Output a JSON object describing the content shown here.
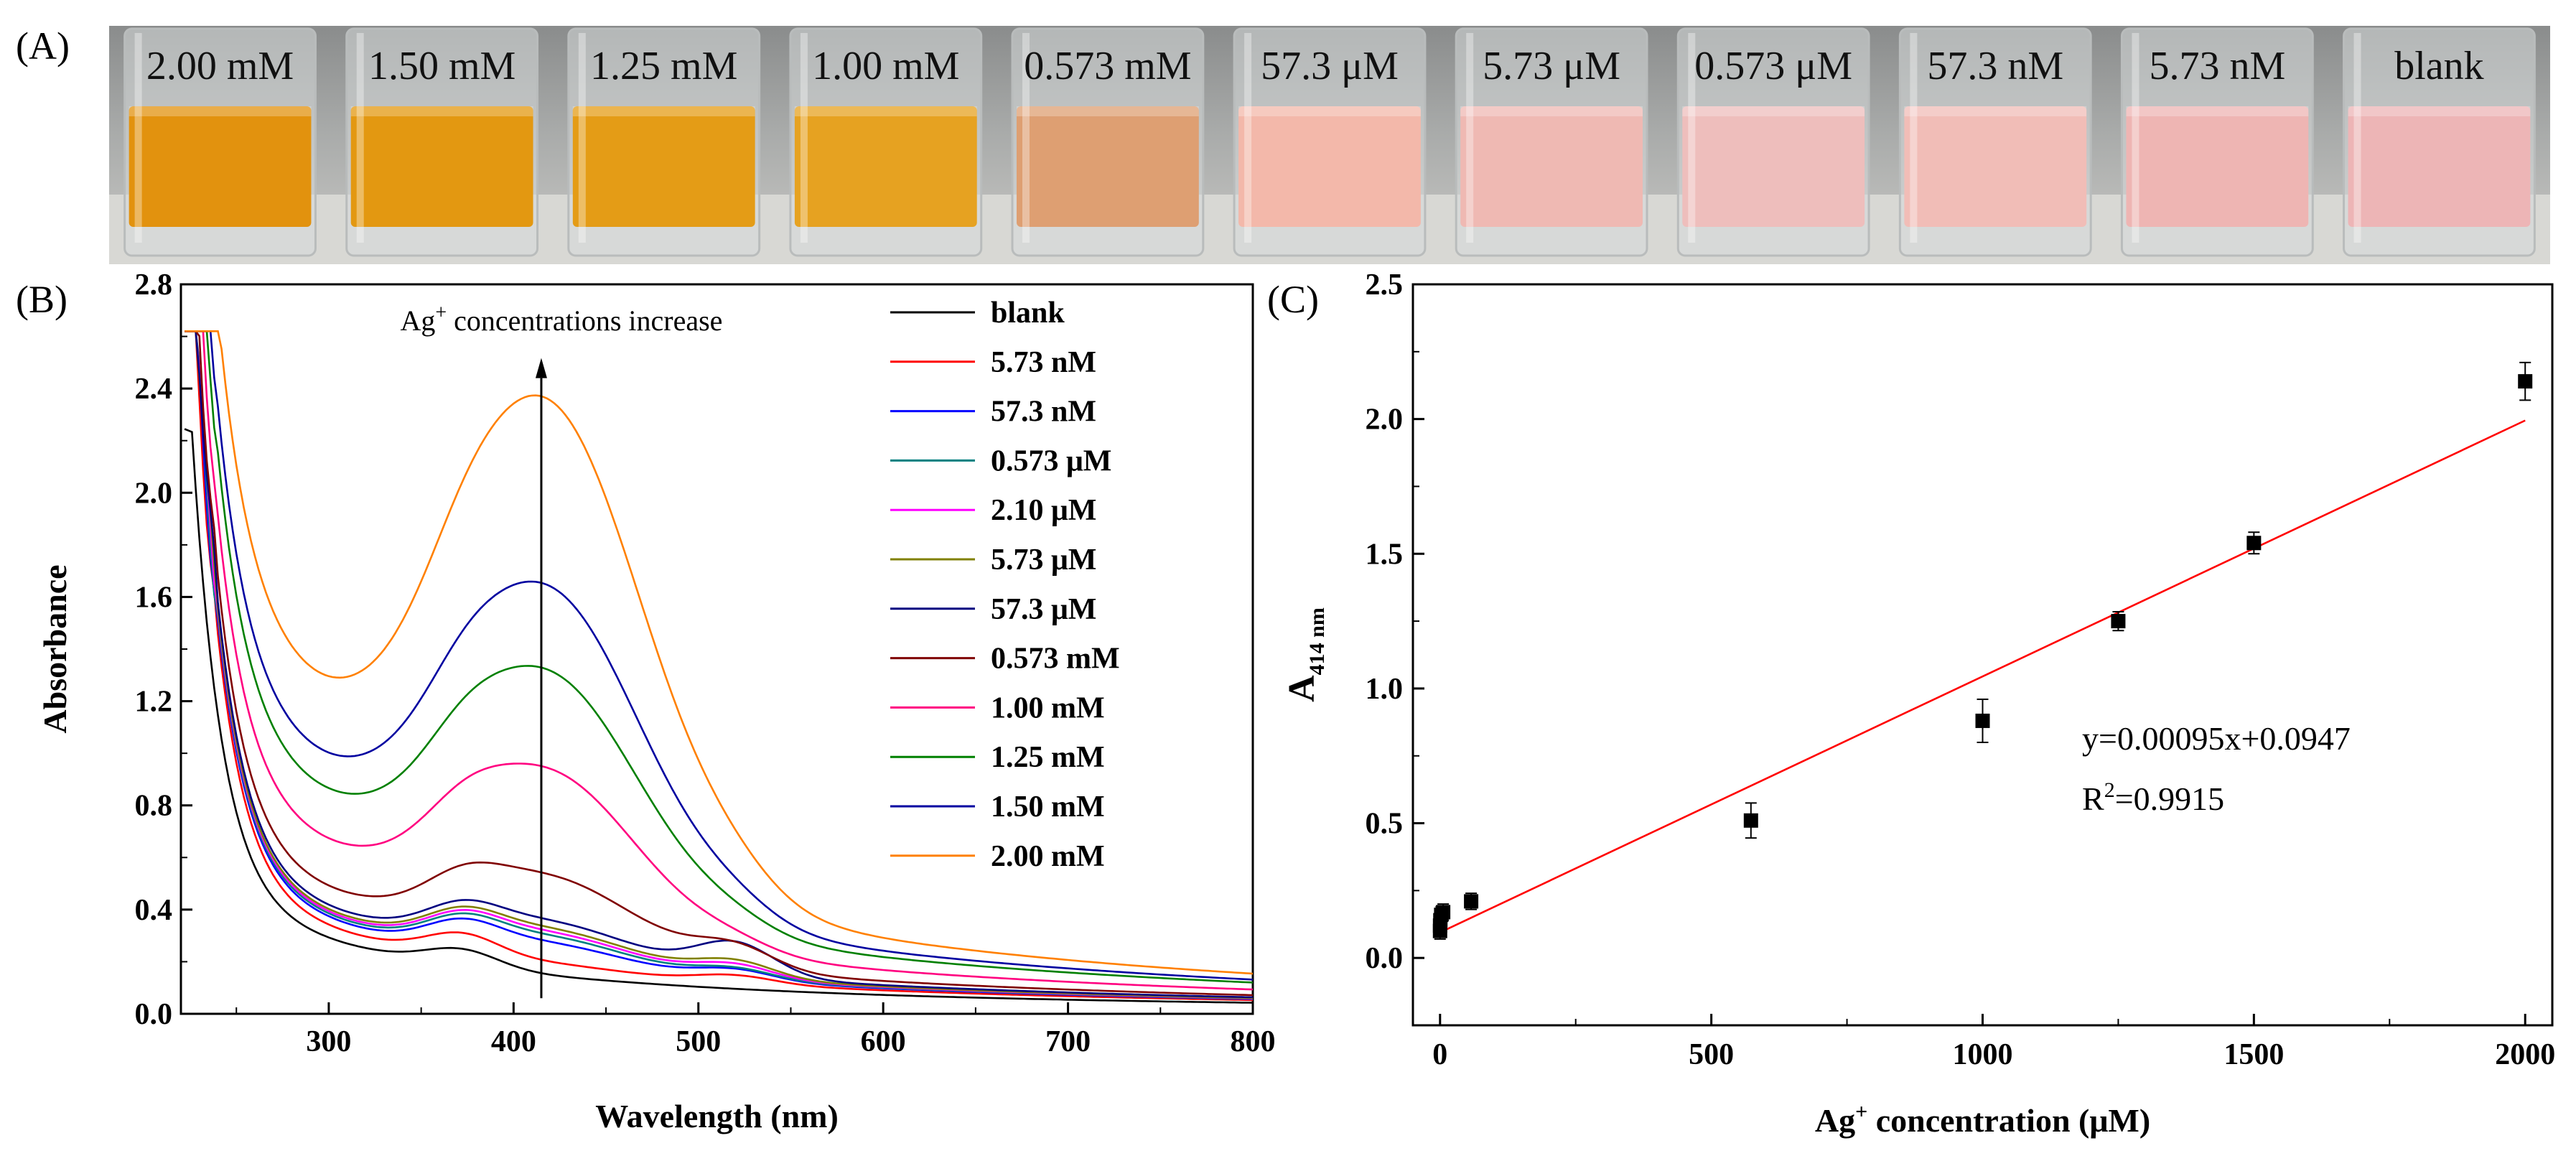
{
  "panels": {
    "a_label": "(A)",
    "b_label": "(B)",
    "c_label": "(C)"
  },
  "photo": {
    "vials": [
      {
        "label": "2.00 mM",
        "color": "#E2920E"
      },
      {
        "label": "1.50 mM",
        "color": "#E39811"
      },
      {
        "label": "1.25 mM",
        "color": "#E49C16"
      },
      {
        "label": "1.00 mM",
        "color": "#E6A221"
      },
      {
        "label": "0.573 mM",
        "color": "#DE9F72"
      },
      {
        "label": "57.3 μM",
        "color": "#F3B8AA"
      },
      {
        "label": "5.73 μM",
        "color": "#EFB9B3"
      },
      {
        "label": "0.573 μM",
        "color": "#EEBEBC"
      },
      {
        "label": "57.3 nM",
        "color": "#F1BDB7"
      },
      {
        "label": "5.73 nM",
        "color": "#EEB5B3"
      },
      {
        "label": "blank",
        "color": "#EDB5B6"
      }
    ]
  },
  "chart_data": [
    {
      "type": "line",
      "panel": "B",
      "title": "",
      "xlabel": "Wavelength (nm)",
      "ylabel": "Absorbance",
      "xlim": [
        220,
        800
      ],
      "ylim": [
        0,
        2.8
      ],
      "xticks": [
        "300",
        "400",
        "500",
        "600",
        "700",
        "800"
      ],
      "yticks": [
        "0.0",
        "0.4",
        "0.8",
        "1.2",
        "1.6",
        "2.0",
        "2.4",
        "2.8"
      ],
      "annotation": {
        "text_main": "Ag",
        "text_sup": "+",
        "text_rest": " concentrations increase",
        "x": 415
      },
      "legend_position": "top-right",
      "series": [
        {
          "name": "blank",
          "color": "#000000",
          "peak": 0.0,
          "mid": 0.11,
          "sat": 1.8,
          "p520": 0.0,
          "fw": 0.15
        },
        {
          "name": "5.73 nM",
          "color": "#FF0000",
          "peak": 0.02,
          "mid": 0.15,
          "sat": 2.42,
          "p520": 0.03,
          "fw": 0.2
        },
        {
          "name": "57.3 nM",
          "color": "#0000FF",
          "peak": 0.08,
          "mid": 0.165,
          "sat": 2.44,
          "p520": 0.04,
          "fw": 0.21
        },
        {
          "name": "0.573 μM",
          "color": "#008080",
          "peak": 0.1,
          "mid": 0.17,
          "sat": 2.45,
          "p520": 0.04,
          "fw": 0.21
        },
        {
          "name": "2.10 μM",
          "color": "#FF00FF",
          "peak": 0.11,
          "mid": 0.175,
          "sat": 2.46,
          "p520": 0.05,
          "fw": 0.22
        },
        {
          "name": "5.73  μM",
          "color": "#808000",
          "peak": 0.12,
          "mid": 0.18,
          "sat": 2.47,
          "p520": 0.06,
          "fw": 0.22
        },
        {
          "name": "57.3 μM",
          "color": "#000080",
          "peak": 0.14,
          "mid": 0.19,
          "sat": 2.48,
          "p520": 0.12,
          "fw": 0.23
        },
        {
          "name": "0.573 mM",
          "color": "#800000",
          "peak": 0.28,
          "mid": 0.22,
          "sat": 2.49,
          "p520": 0.08,
          "fw": 0.24
        },
        {
          "name": "1.00 mM",
          "color": "#FF0080",
          "peak": 0.6,
          "mid": 0.3,
          "sat": 2.5,
          "p520": 0.03,
          "fw": 0.26
        },
        {
          "name": "1.25 mM",
          "color": "#008000",
          "peak": 0.88,
          "mid": 0.4,
          "sat": 2.52,
          "p520": 0.03,
          "fw": 0.28
        },
        {
          "name": "1.50 mM",
          "color": "#0000A0",
          "peak": 1.15,
          "mid": 0.44,
          "sat": 2.55,
          "p520": 0.04,
          "fw": 0.29
        },
        {
          "name": "2.00 mM",
          "color": "#FF8000",
          "peak": 1.75,
          "mid": 0.52,
          "sat": 2.58,
          "p520": 0.05,
          "fw": 0.31
        }
      ]
    },
    {
      "type": "scatter",
      "panel": "C",
      "title": "",
      "xlabel_main": "Ag",
      "xlabel_sup": "+",
      "xlabel_rest": " concentration (μM)",
      "ylabel_main": "A",
      "ylabel_sub": "414 nm",
      "xlim": [
        -50,
        2050
      ],
      "ylim": [
        -0.25,
        2.5
      ],
      "xticks": [
        "0",
        "500",
        "1000",
        "1500",
        "2000"
      ],
      "yticks": [
        "0.0",
        "0.5",
        "1.0",
        "1.5",
        "2.0",
        "2.5"
      ],
      "points": [
        {
          "x": 0.00573,
          "y": 0.1,
          "err": 0.03
        },
        {
          "x": 0.0573,
          "y": 0.12,
          "err": 0.03
        },
        {
          "x": 0.573,
          "y": 0.14,
          "err": 0.03
        },
        {
          "x": 2.1,
          "y": 0.16,
          "err": 0.03
        },
        {
          "x": 5.73,
          "y": 0.17,
          "err": 0.03
        },
        {
          "x": 57.3,
          "y": 0.21,
          "err": 0.03
        },
        {
          "x": 573,
          "y": 0.51,
          "err": 0.065
        },
        {
          "x": 1000,
          "y": 0.88,
          "err": 0.08
        },
        {
          "x": 1250,
          "y": 1.25,
          "err": 0.035
        },
        {
          "x": 1500,
          "y": 1.54,
          "err": 0.04
        },
        {
          "x": 2000,
          "y": 2.14,
          "err": 0.07
        }
      ],
      "fit": {
        "slope": 0.00095,
        "intercept": 0.0947,
        "x_range": [
          0,
          2000
        ],
        "color": "#FF0000"
      },
      "equation": "y=0.00095x+0.0947",
      "r2_main": "R",
      "r2_sup": "2",
      "r2_rest": "=0.9915"
    }
  ]
}
